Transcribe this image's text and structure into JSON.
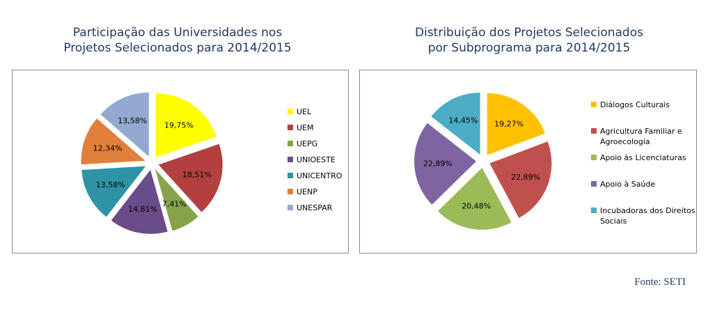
{
  "chart_data": [
    {
      "type": "pie",
      "title": [
        "Participação das Universidades nos",
        "Projetos Selecionados para 2014/2015"
      ],
      "categories": [
        "UEL",
        "UEM",
        "UEPG",
        "UNIOESTE",
        "UNICENTRO",
        "UENP",
        "UNESPAR"
      ],
      "values": [
        19.75,
        18.51,
        7.41,
        14.81,
        13.58,
        12.34,
        13.58
      ],
      "labels": [
        "19,75%",
        "18,51%",
        "7,41%",
        "14,81%",
        "13,58%",
        "12,34%",
        "13,58%"
      ],
      "colors": [
        "#ffff00",
        "#b3403e",
        "#86a349",
        "#6a4c8a",
        "#2f93a7",
        "#e0803a",
        "#93a9d1"
      ],
      "legend_position": "right"
    },
    {
      "type": "pie",
      "title": [
        "Distribuição dos Projetos Selecionados",
        "por Subprograma para 2014/2015"
      ],
      "categories": [
        "Diálogos Culturais",
        "Agricultura Familiar e Agroecologia",
        "Apoio às Licenciaturas",
        "Apoio à Saúde",
        "Incubadoras dos Direitos Sociais"
      ],
      "values": [
        19.27,
        22.89,
        20.48,
        22.89,
        14.45
      ],
      "labels": [
        "19,27%",
        "22,89%",
        "20,48%",
        "22,89%",
        "14,45%"
      ],
      "colors": [
        "#ffc000",
        "#c0504d",
        "#9bbb59",
        "#8064a2",
        "#4bacc6"
      ],
      "legend_position": "right"
    }
  ],
  "source": "Fonte: SETI"
}
